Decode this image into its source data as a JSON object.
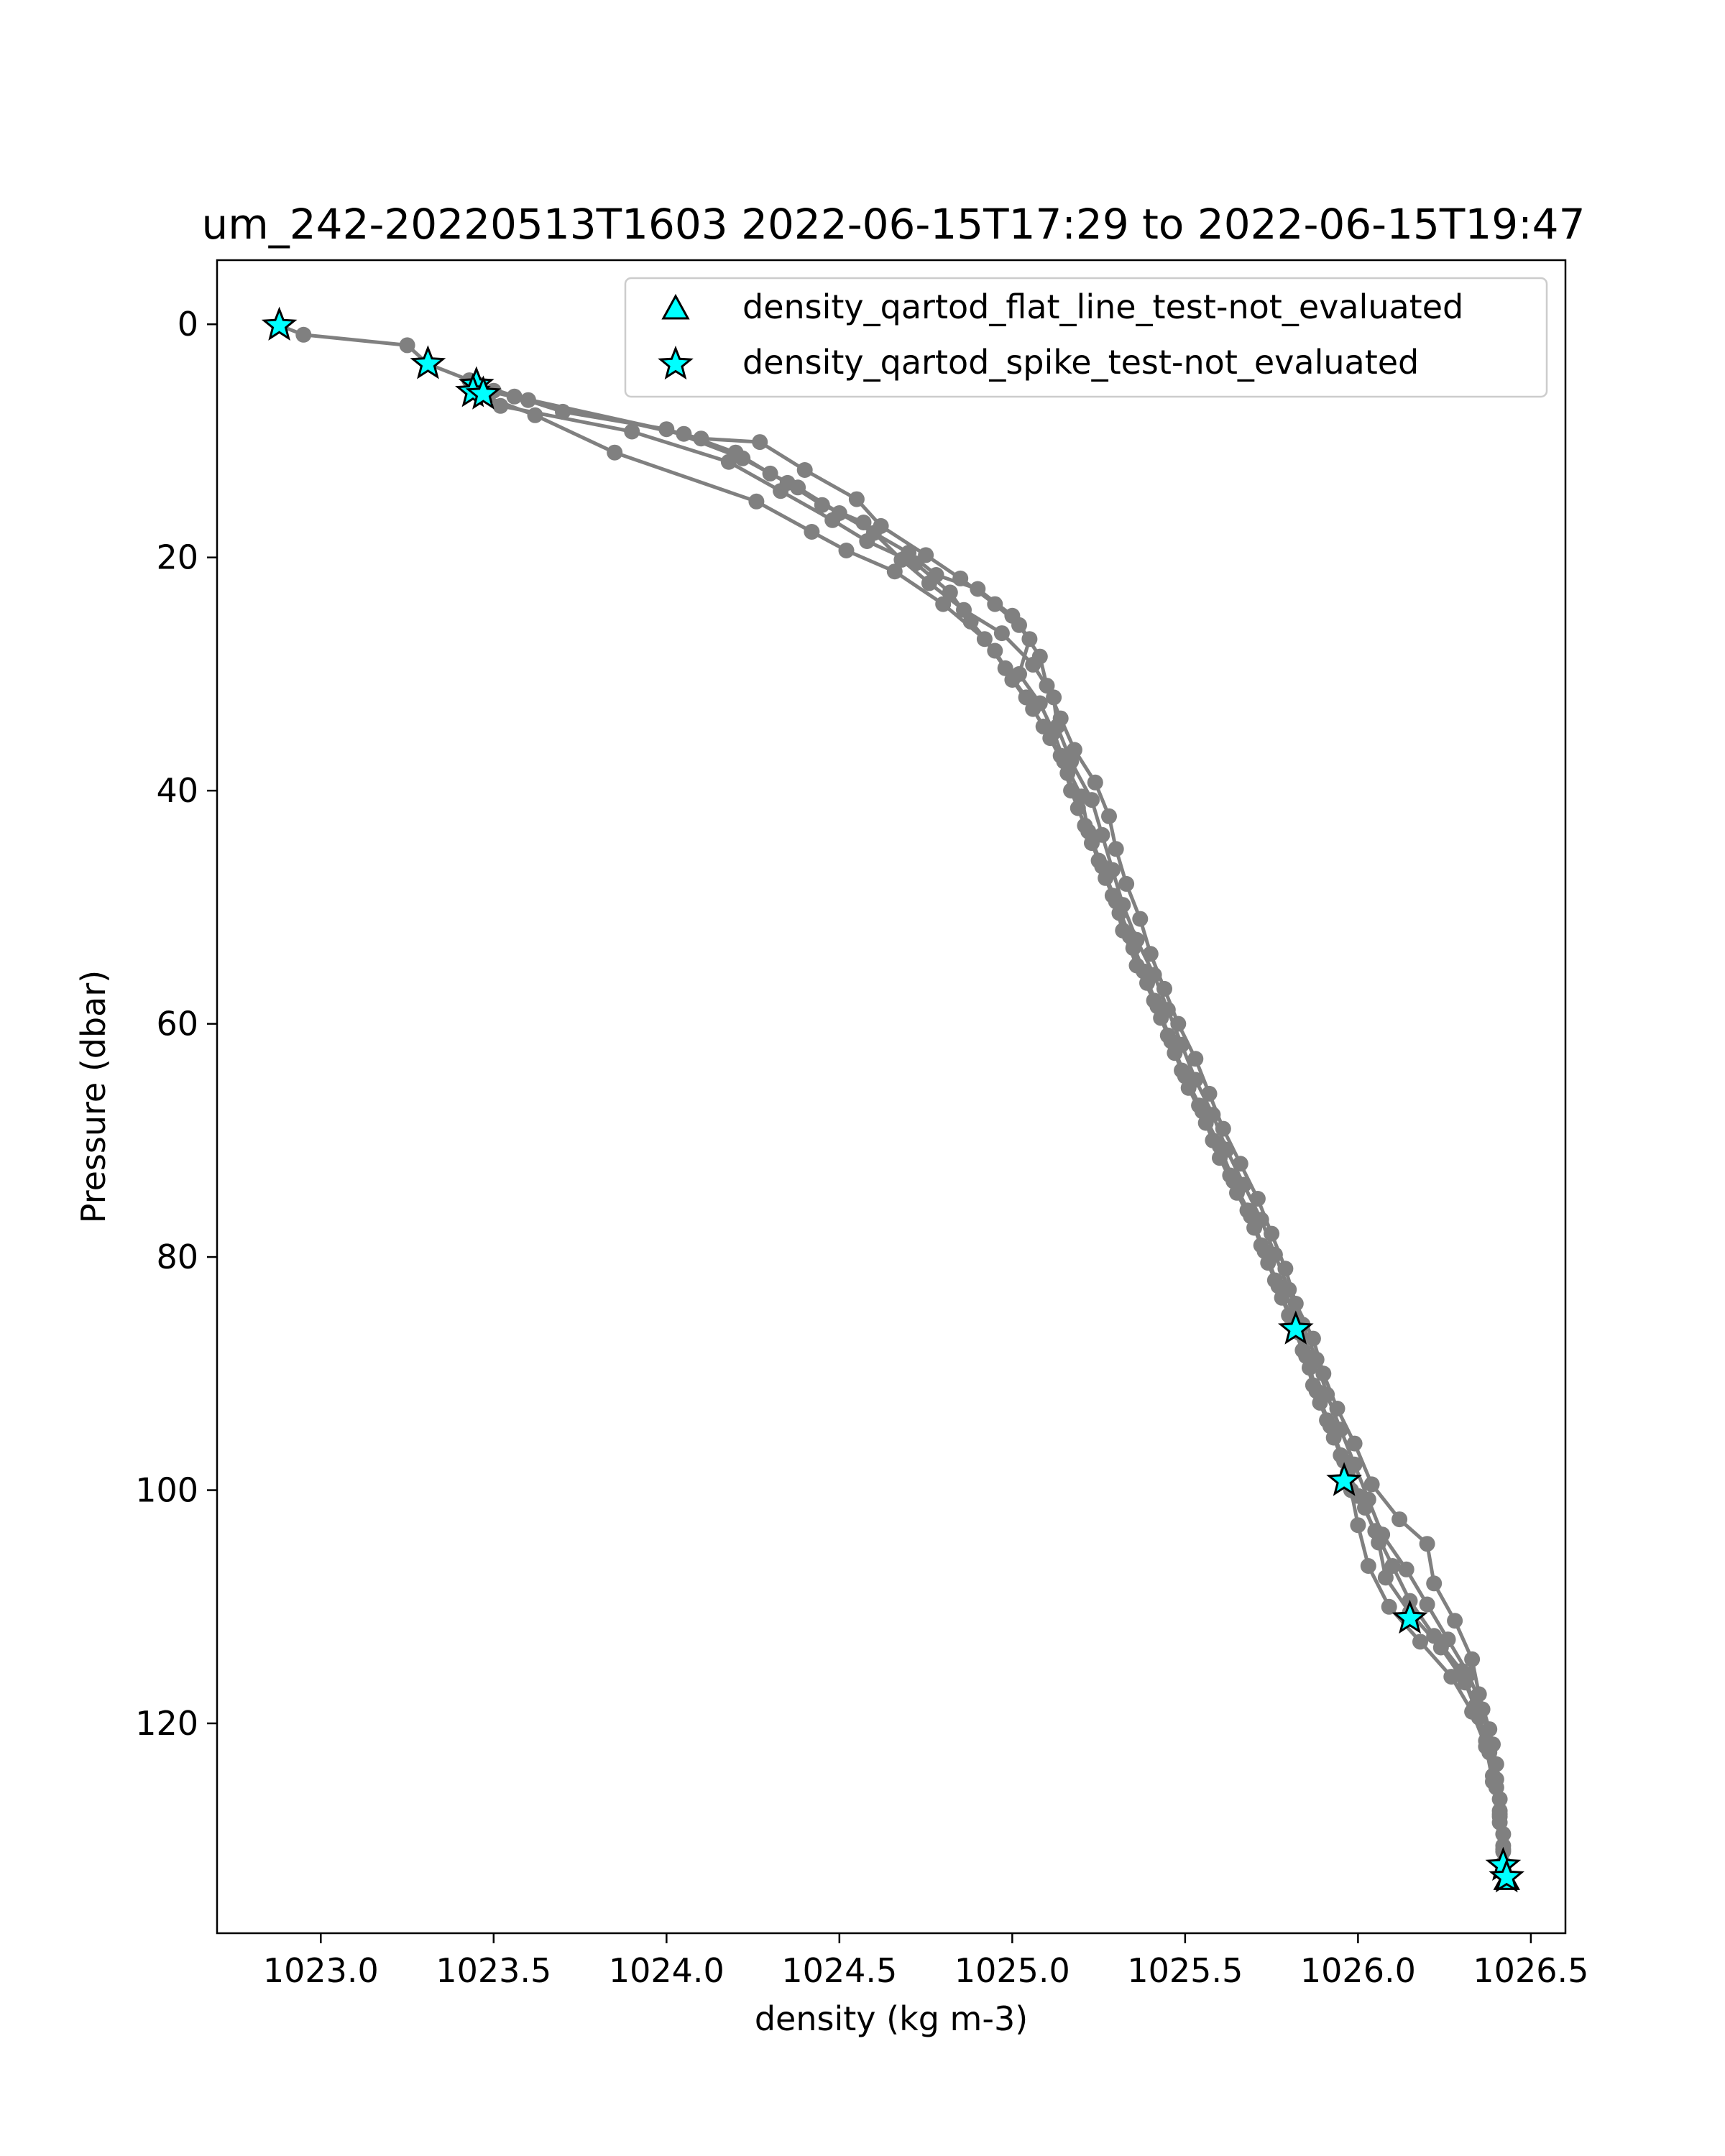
{
  "chart_data": {
    "type": "line",
    "title": "um_242-20220513T1603 2022-06-15T17:29 to 2022-06-15T19:47",
    "xlabel": "density (kg m-3)",
    "ylabel": "Pressure (dbar)",
    "xlim": [
      1022.7,
      1026.6
    ],
    "ylim": [
      138,
      -5.5
    ],
    "y_inverted": true,
    "grid": false,
    "x_ticks": [
      1023.0,
      1023.5,
      1024.0,
      1024.5,
      1025.0,
      1025.5,
      1026.0,
      1026.5
    ],
    "x_tick_labels": [
      "1023.0",
      "1023.5",
      "1024.0",
      "1024.5",
      "1025.0",
      "1025.5",
      "1026.0",
      "1026.5"
    ],
    "y_ticks": [
      0,
      20,
      40,
      60,
      80,
      100,
      120
    ],
    "y_tick_labels": [
      "0",
      "20",
      "40",
      "60",
      "80",
      "100",
      "120"
    ],
    "legend": {
      "position": "top-right",
      "entries": [
        {
          "label": "density_qartod_flat_line_test-not_evaluated",
          "marker": "triangle",
          "color": "#00ffff"
        },
        {
          "label": "density_qartod_spike_test-not_evaluated",
          "marker": "star",
          "color": "#00ffff"
        }
      ]
    },
    "profile_color": "#808080",
    "series": [
      {
        "name": "profile",
        "marker": "circle",
        "color": "#808080",
        "points": [
          [
            1022.88,
            0.1
          ],
          [
            1022.95,
            0.9
          ],
          [
            1023.25,
            1.8
          ],
          [
            1023.31,
            3.4
          ],
          [
            1023.43,
            4.8
          ],
          [
            1023.5,
            5.7
          ],
          [
            1023.56,
            6.2
          ],
          [
            1024.05,
            9.4
          ],
          [
            1024.2,
            11.0
          ],
          [
            1024.3,
            12.8
          ],
          [
            1024.38,
            14.0
          ],
          [
            1024.5,
            16.2
          ],
          [
            1024.6,
            17.9
          ],
          [
            1024.7,
            19.6
          ],
          [
            1024.78,
            21.5
          ],
          [
            1024.9,
            22.7
          ],
          [
            1025.0,
            25.0
          ],
          [
            1025.05,
            27.0
          ],
          [
            1025.02,
            30.0
          ],
          [
            1025.08,
            32.5
          ],
          [
            1025.12,
            35.0
          ],
          [
            1025.15,
            37.5
          ],
          [
            1025.2,
            40.5
          ],
          [
            1025.22,
            43.5
          ],
          [
            1025.26,
            46.5
          ],
          [
            1025.3,
            49.5
          ],
          [
            1025.34,
            52.5
          ],
          [
            1025.38,
            55.5
          ],
          [
            1025.42,
            58.5
          ],
          [
            1025.46,
            61.5
          ],
          [
            1025.5,
            64.5
          ],
          [
            1025.55,
            67.5
          ],
          [
            1025.6,
            70.5
          ],
          [
            1025.64,
            73.5
          ],
          [
            1025.69,
            76.5
          ],
          [
            1025.73,
            79.5
          ],
          [
            1025.77,
            82.5
          ],
          [
            1025.81,
            85.5
          ],
          [
            1025.85,
            88.5
          ],
          [
            1025.88,
            91.5
          ],
          [
            1025.92,
            94.5
          ],
          [
            1025.96,
            97.5
          ],
          [
            1026.0,
            100.5
          ],
          [
            1026.05,
            103.5
          ],
          [
            1026.1,
            106.5
          ],
          [
            1026.15,
            109.5
          ],
          [
            1026.22,
            112.5
          ],
          [
            1026.3,
            115.5
          ],
          [
            1026.34,
            118.5
          ],
          [
            1026.37,
            121.5
          ],
          [
            1026.39,
            124.5
          ],
          [
            1026.41,
            127.5
          ],
          [
            1026.42,
            130.5
          ],
          [
            1026.43,
            133.2
          ]
        ]
      },
      {
        "name": "profile",
        "marker": "circle",
        "color": "#808080",
        "points": [
          [
            1023.45,
            5.5
          ],
          [
            1023.6,
            6.5
          ],
          [
            1024.1,
            9.8
          ],
          [
            1024.27,
            10.1
          ],
          [
            1024.4,
            12.5
          ],
          [
            1024.55,
            15.0
          ],
          [
            1024.62,
            17.3
          ],
          [
            1024.75,
            19.8
          ],
          [
            1024.85,
            21.8
          ],
          [
            1024.95,
            24.0
          ],
          [
            1025.02,
            25.8
          ],
          [
            1025.08,
            28.5
          ],
          [
            1025.1,
            31.0
          ],
          [
            1025.14,
            33.8
          ],
          [
            1025.18,
            36.5
          ],
          [
            1025.24,
            39.3
          ],
          [
            1025.28,
            42.2
          ],
          [
            1025.3,
            45.0
          ],
          [
            1025.33,
            48.0
          ],
          [
            1025.37,
            51.0
          ],
          [
            1025.4,
            54.0
          ],
          [
            1025.44,
            57.0
          ],
          [
            1025.48,
            60.0
          ],
          [
            1025.53,
            63.0
          ],
          [
            1025.57,
            66.0
          ],
          [
            1025.61,
            69.0
          ],
          [
            1025.66,
            72.0
          ],
          [
            1025.71,
            75.0
          ],
          [
            1025.75,
            78.0
          ],
          [
            1025.79,
            81.0
          ],
          [
            1025.82,
            84.0
          ],
          [
            1025.87,
            87.0
          ],
          [
            1025.9,
            90.0
          ],
          [
            1025.94,
            93.0
          ],
          [
            1025.99,
            96.0
          ],
          [
            1026.04,
            99.5
          ],
          [
            1026.12,
            102.5
          ],
          [
            1026.2,
            104.6
          ],
          [
            1026.22,
            108.0
          ],
          [
            1026.28,
            111.2
          ],
          [
            1026.33,
            114.5
          ],
          [
            1026.35,
            117.5
          ],
          [
            1026.38,
            120.5
          ],
          [
            1026.4,
            123.5
          ],
          [
            1026.41,
            126.5
          ],
          [
            1026.42,
            129.5
          ]
        ]
      },
      {
        "name": "profile",
        "marker": "circle",
        "color": "#808080",
        "points": [
          [
            1023.47,
            6.0
          ],
          [
            1023.52,
            7.0
          ],
          [
            1023.9,
            9.2
          ],
          [
            1024.18,
            11.8
          ],
          [
            1024.33,
            14.3
          ],
          [
            1024.48,
            16.8
          ],
          [
            1024.58,
            18.6
          ],
          [
            1024.72,
            20.5
          ],
          [
            1024.82,
            23.0
          ],
          [
            1024.88,
            25.5
          ],
          [
            1024.95,
            28.0
          ],
          [
            1025.0,
            30.5
          ],
          [
            1025.06,
            33.0
          ],
          [
            1025.11,
            35.5
          ],
          [
            1025.16,
            38.5
          ],
          [
            1025.19,
            41.5
          ],
          [
            1025.23,
            44.5
          ],
          [
            1025.27,
            47.5
          ],
          [
            1025.31,
            50.5
          ],
          [
            1025.35,
            53.5
          ],
          [
            1025.39,
            56.5
          ],
          [
            1025.43,
            59.5
          ],
          [
            1025.47,
            62.5
          ],
          [
            1025.51,
            65.5
          ],
          [
            1025.56,
            68.5
          ],
          [
            1025.6,
            71.5
          ],
          [
            1025.65,
            74.5
          ],
          [
            1025.7,
            77.5
          ],
          [
            1025.74,
            80.5
          ],
          [
            1025.78,
            83.5
          ],
          [
            1025.83,
            86.5
          ],
          [
            1025.86,
            89.5
          ],
          [
            1025.89,
            92.5
          ],
          [
            1025.93,
            95.5
          ],
          [
            1025.97,
            98.5
          ],
          [
            1026.02,
            101.5
          ],
          [
            1026.06,
            104.5
          ],
          [
            1026.08,
            107.5
          ],
          [
            1026.15,
            110.5
          ],
          [
            1026.24,
            113.5
          ],
          [
            1026.31,
            116.5
          ],
          [
            1026.35,
            119.5
          ],
          [
            1026.38,
            122.5
          ],
          [
            1026.4,
            125.5
          ],
          [
            1026.41,
            128.5
          ],
          [
            1026.42,
            132.0
          ]
        ]
      },
      {
        "name": "profile",
        "marker": "circle",
        "color": "#808080",
        "points": [
          [
            1023.44,
            5.8
          ],
          [
            1023.62,
            7.8
          ],
          [
            1023.85,
            11.0
          ],
          [
            1024.26,
            15.2
          ],
          [
            1024.42,
            17.8
          ],
          [
            1024.52,
            19.4
          ],
          [
            1024.66,
            21.2
          ],
          [
            1024.8,
            24.0
          ],
          [
            1024.92,
            27.0
          ],
          [
            1024.98,
            29.5
          ],
          [
            1025.04,
            32.0
          ],
          [
            1025.09,
            34.5
          ],
          [
            1025.14,
            37.0
          ],
          [
            1025.17,
            40.0
          ],
          [
            1025.21,
            43.0
          ],
          [
            1025.25,
            46.0
          ],
          [
            1025.29,
            49.0
          ],
          [
            1025.32,
            52.0
          ],
          [
            1025.36,
            55.0
          ],
          [
            1025.41,
            58.0
          ],
          [
            1025.45,
            61.0
          ],
          [
            1025.49,
            64.0
          ],
          [
            1025.54,
            67.0
          ],
          [
            1025.58,
            70.0
          ],
          [
            1025.63,
            73.0
          ],
          [
            1025.68,
            76.0
          ],
          [
            1025.72,
            79.0
          ],
          [
            1025.76,
            82.0
          ],
          [
            1025.8,
            85.0
          ],
          [
            1025.84,
            88.0
          ],
          [
            1025.87,
            91.0
          ],
          [
            1025.91,
            94.0
          ],
          [
            1025.95,
            97.0
          ],
          [
            1025.98,
            100.0
          ],
          [
            1026.0,
            103.0
          ],
          [
            1026.03,
            106.5
          ],
          [
            1026.09,
            110.0
          ],
          [
            1026.18,
            113.0
          ],
          [
            1026.27,
            116.0
          ],
          [
            1026.33,
            119.0
          ],
          [
            1026.37,
            122.0
          ],
          [
            1026.39,
            125.0
          ],
          [
            1026.41,
            128.0
          ],
          [
            1026.42,
            131.0
          ]
        ]
      },
      {
        "name": "profile",
        "marker": "circle",
        "color": "#808080",
        "points": [
          [
            1023.46,
            5.2
          ],
          [
            1023.7,
            7.5
          ],
          [
            1024.0,
            9.0
          ],
          [
            1024.22,
            11.5
          ],
          [
            1024.35,
            13.6
          ],
          [
            1024.45,
            15.5
          ],
          [
            1024.57,
            17.0
          ],
          [
            1024.68,
            20.2
          ],
          [
            1024.76,
            22.2
          ],
          [
            1024.86,
            24.5
          ],
          [
            1024.97,
            26.5
          ],
          [
            1025.06,
            29.2
          ],
          [
            1025.12,
            32.0
          ],
          [
            1025.13,
            34.5
          ],
          [
            1025.17,
            37.5
          ],
          [
            1025.23,
            40.8
          ],
          [
            1025.26,
            43.8
          ],
          [
            1025.29,
            46.8
          ],
          [
            1025.32,
            49.8
          ],
          [
            1025.36,
            52.8
          ],
          [
            1025.41,
            55.8
          ],
          [
            1025.45,
            58.8
          ],
          [
            1025.49,
            61.8
          ],
          [
            1025.53,
            64.8
          ],
          [
            1025.58,
            67.8
          ],
          [
            1025.62,
            70.8
          ],
          [
            1025.67,
            73.8
          ],
          [
            1025.72,
            76.8
          ],
          [
            1025.76,
            79.8
          ],
          [
            1025.8,
            82.8
          ],
          [
            1025.84,
            85.8
          ],
          [
            1025.88,
            88.8
          ],
          [
            1025.91,
            91.8
          ],
          [
            1025.95,
            94.8
          ],
          [
            1025.99,
            97.8
          ],
          [
            1026.03,
            100.8
          ],
          [
            1026.07,
            103.8
          ],
          [
            1026.14,
            106.8
          ],
          [
            1026.2,
            109.8
          ],
          [
            1026.26,
            112.8
          ],
          [
            1026.32,
            115.8
          ],
          [
            1026.36,
            118.8
          ],
          [
            1026.39,
            121.8
          ],
          [
            1026.4,
            124.8
          ],
          [
            1026.41,
            127.8
          ],
          [
            1026.42,
            130.8
          ]
        ]
      }
    ],
    "spike_test_not_evaluated_points": [
      [
        1022.88,
        0.1
      ],
      [
        1023.31,
        3.4
      ],
      [
        1023.45,
        5.2
      ],
      [
        1023.44,
        5.8
      ],
      [
        1023.47,
        6.0
      ],
      [
        1025.82,
        86.2
      ],
      [
        1025.96,
        99.2
      ],
      [
        1026.15,
        111.0
      ],
      [
        1026.42,
        132.2
      ],
      [
        1026.43,
        133.2
      ]
    ],
    "flat_line_test_not_evaluated_points": [
      [
        1026.43,
        133.2
      ]
    ]
  }
}
